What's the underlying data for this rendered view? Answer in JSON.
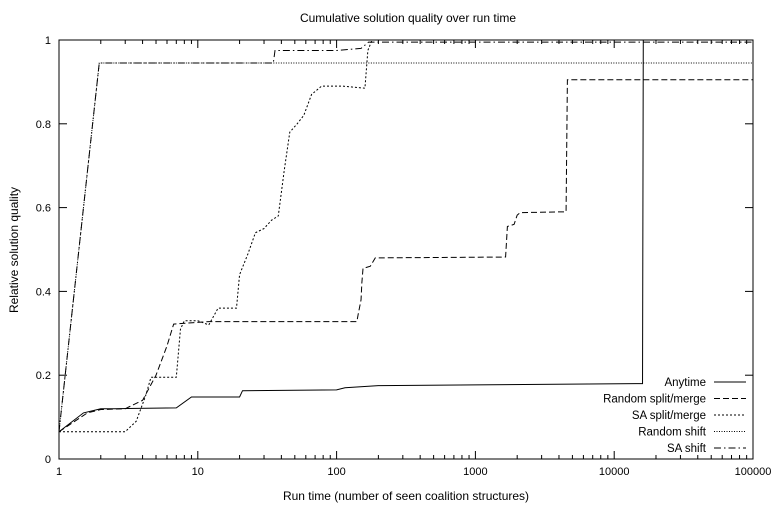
{
  "chart_data": {
    "type": "line",
    "title": "Cumulative solution quality over run time",
    "xlabel": "Run time (number of seen coalition structures)",
    "ylabel": "Relative solution quality",
    "x_scale": "log",
    "xlim": [
      1,
      100000
    ],
    "ylim": [
      0,
      1
    ],
    "x_ticks": [
      1,
      10,
      100,
      1000,
      10000,
      100000
    ],
    "x_tick_labels": [
      "1",
      "10",
      "100",
      "1000",
      "10000",
      "100000"
    ],
    "y_ticks": [
      0,
      0.2,
      0.4,
      0.6,
      0.8,
      1
    ],
    "y_tick_labels": [
      "0",
      "0.2",
      "0.4",
      "0.6",
      "0.8",
      "1"
    ],
    "grid": false,
    "legend_position": "bottom-right",
    "series": [
      {
        "name": "Anytime",
        "style": "solid",
        "points": [
          [
            1,
            0.065
          ],
          [
            1.5,
            0.11
          ],
          [
            2,
            0.12
          ],
          [
            2.5,
            0.12
          ],
          [
            7,
            0.122
          ],
          [
            9,
            0.148
          ],
          [
            20,
            0.148
          ],
          [
            21,
            0.163
          ],
          [
            100,
            0.165
          ],
          [
            115,
            0.17
          ],
          [
            200,
            0.175
          ],
          [
            1000,
            0.177
          ],
          [
            16000,
            0.18
          ],
          [
            16200,
            1
          ],
          [
            100000,
            1
          ]
        ]
      },
      {
        "name": "Random split/merge",
        "style": "dashed",
        "points": [
          [
            1,
            0.065
          ],
          [
            1.6,
            0.11
          ],
          [
            2,
            0.118
          ],
          [
            3,
            0.12
          ],
          [
            4,
            0.14
          ],
          [
            5,
            0.2
          ],
          [
            6,
            0.27
          ],
          [
            6.7,
            0.322
          ],
          [
            12,
            0.328
          ],
          [
            140,
            0.328
          ],
          [
            143,
            0.345
          ],
          [
            150,
            0.38
          ],
          [
            152,
            0.42
          ],
          [
            155,
            0.455
          ],
          [
            175,
            0.46
          ],
          [
            190,
            0.48
          ],
          [
            1650,
            0.482
          ],
          [
            1700,
            0.555
          ],
          [
            1900,
            0.56
          ],
          [
            2000,
            0.582
          ],
          [
            2100,
            0.588
          ],
          [
            4500,
            0.59
          ],
          [
            4600,
            0.905
          ],
          [
            100000,
            0.905
          ]
        ]
      },
      {
        "name": "SA split/merge",
        "style": "dotted",
        "points": [
          [
            1,
            0.065
          ],
          [
            3,
            0.065
          ],
          [
            3.6,
            0.09
          ],
          [
            4.2,
            0.15
          ],
          [
            4.6,
            0.195
          ],
          [
            7,
            0.195
          ],
          [
            7.5,
            0.31
          ],
          [
            8,
            0.33
          ],
          [
            10,
            0.33
          ],
          [
            12,
            0.32
          ],
          [
            14,
            0.36
          ],
          [
            19,
            0.36
          ],
          [
            20,
            0.44
          ],
          [
            23,
            0.49
          ],
          [
            26,
            0.54
          ],
          [
            30,
            0.55
          ],
          [
            34,
            0.57
          ],
          [
            38,
            0.58
          ],
          [
            42,
            0.69
          ],
          [
            46,
            0.78
          ],
          [
            52,
            0.8
          ],
          [
            58,
            0.82
          ],
          [
            66,
            0.87
          ],
          [
            78,
            0.89
          ],
          [
            110,
            0.89
          ],
          [
            160,
            0.885
          ],
          [
            168,
            0.975
          ],
          [
            180,
            1
          ],
          [
            100000,
            1
          ]
        ]
      },
      {
        "name": "Random shift",
        "style": "dotted-fine",
        "points": [
          [
            1,
            0.065
          ],
          [
            1.95,
            0.945
          ],
          [
            100000,
            0.945
          ]
        ]
      },
      {
        "name": "SA shift",
        "style": "dash-dot",
        "points": [
          [
            1,
            0.065
          ],
          [
            1.95,
            0.945
          ],
          [
            35,
            0.945
          ],
          [
            36,
            0.975
          ],
          [
            100,
            0.975
          ],
          [
            150,
            0.98
          ],
          [
            170,
            0.995
          ],
          [
            180,
            0.995
          ],
          [
            100000,
            0.995
          ]
        ]
      }
    ]
  }
}
